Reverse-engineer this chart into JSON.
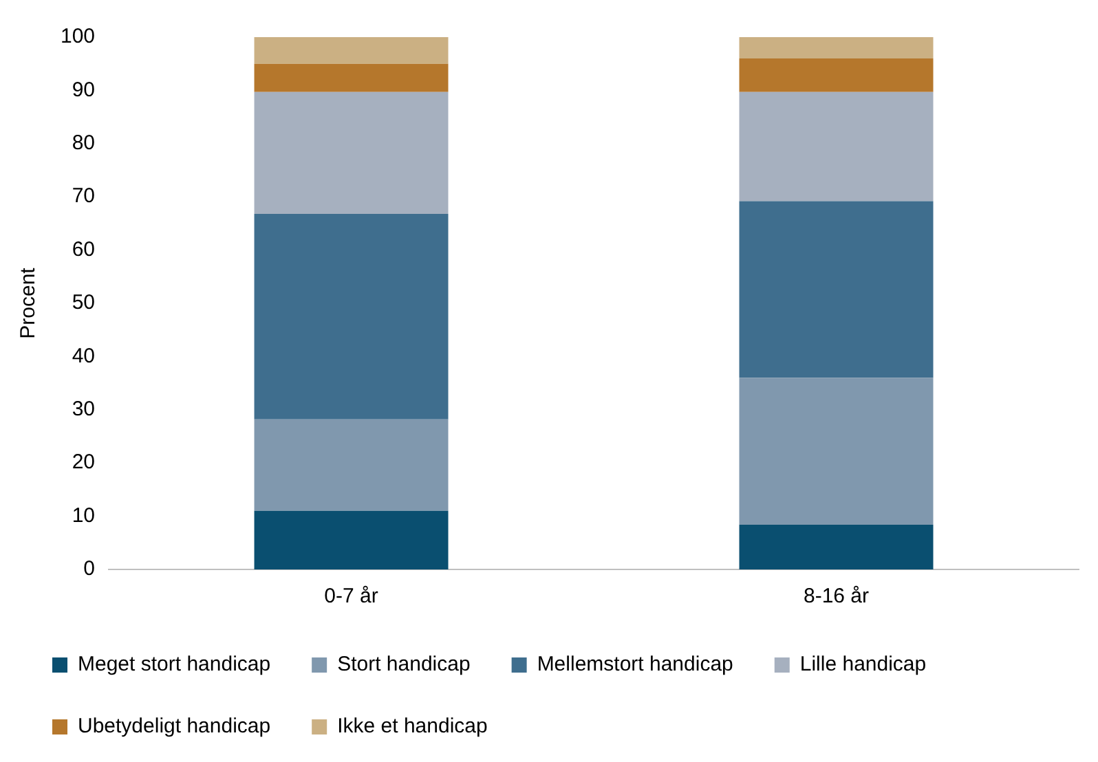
{
  "chart_data": {
    "type": "bar",
    "stacked": true,
    "ylabel": "Procent",
    "categories": [
      "0-7 år",
      "8-16 år"
    ],
    "ylim": [
      0,
      100
    ],
    "yticks": [
      0,
      10,
      20,
      30,
      40,
      50,
      60,
      70,
      80,
      90,
      100
    ],
    "grid": false,
    "legend": "bottom",
    "series": [
      {
        "name": "Meget stort handicap",
        "color": "#0a4f70",
        "values": [
          11,
          8.4
        ]
      },
      {
        "name": "Stort handicap",
        "color": "#8098ae",
        "values": [
          17.2,
          27.6
        ]
      },
      {
        "name": "Mellemstort handicap",
        "color": "#3f6e8e",
        "values": [
          38.6,
          33.2
        ]
      },
      {
        "name": "Lille handicap",
        "color": "#a6b0bf",
        "values": [
          22.9,
          20.5
        ]
      },
      {
        "name": "Ubetydeligt handicap",
        "color": "#b5772c",
        "values": [
          5.3,
          6.3
        ]
      },
      {
        "name": "Ikke et handicap",
        "color": "#cbb083",
        "values": [
          5,
          4
        ]
      }
    ]
  }
}
